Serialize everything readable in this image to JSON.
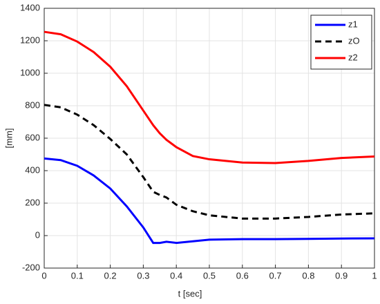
{
  "chart_data": {
    "type": "line",
    "xlabel": "t [sec]",
    "ylabel": "[mm]",
    "x": [
      0,
      0.05,
      0.1,
      0.15,
      0.2,
      0.25,
      0.3,
      0.33,
      0.35,
      0.37,
      0.4,
      0.45,
      0.5,
      0.6,
      0.7,
      0.8,
      0.9,
      1
    ],
    "series": [
      {
        "name": "z1",
        "color": "#0000ff",
        "style": "solid",
        "values": [
          475,
          465,
          430,
          370,
          290,
          180,
          50,
          -45,
          -45,
          -38,
          -45,
          -35,
          -25,
          -22,
          -22,
          -20,
          -18,
          -17
        ]
      },
      {
        "name": "zO",
        "color": "#000000",
        "style": "dashed",
        "values": [
          805,
          790,
          745,
          680,
          595,
          500,
          360,
          270,
          250,
          235,
          190,
          150,
          125,
          105,
          105,
          115,
          130,
          137
        ]
      },
      {
        "name": "z2",
        "color": "#ff0000",
        "style": "solid",
        "values": [
          1255,
          1240,
          1195,
          1130,
          1040,
          920,
          770,
          680,
          630,
          590,
          545,
          490,
          470,
          450,
          447,
          460,
          478,
          487
        ]
      }
    ],
    "xlim": [
      0,
      1
    ],
    "xticks": [
      0,
      0.1,
      0.2,
      0.3,
      0.4,
      0.5,
      0.6,
      0.7,
      0.8,
      0.9,
      1
    ],
    "ylim": [
      -200,
      1400
    ],
    "yticks": [
      -200,
      0,
      200,
      400,
      600,
      800,
      1000,
      1200,
      1400
    ],
    "grid": true,
    "legend": "top-right"
  }
}
